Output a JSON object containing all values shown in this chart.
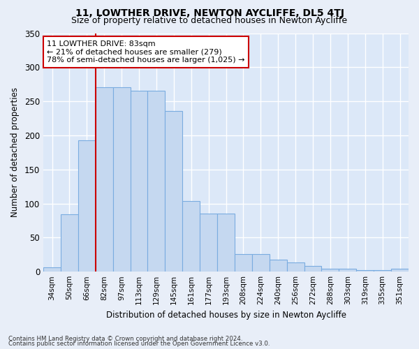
{
  "title": "11, LOWTHER DRIVE, NEWTON AYCLIFFE, DL5 4TJ",
  "subtitle": "Size of property relative to detached houses in Newton Aycliffe",
  "xlabel": "Distribution of detached houses by size in Newton Aycliffe",
  "ylabel": "Number of detached properties",
  "footnote1": "Contains HM Land Registry data © Crown copyright and database right 2024.",
  "footnote2": "Contains public sector information licensed under the Open Government Licence v3.0.",
  "categories": [
    "34sqm",
    "50sqm",
    "66sqm",
    "82sqm",
    "97sqm",
    "113sqm",
    "129sqm",
    "145sqm",
    "161sqm",
    "177sqm",
    "193sqm",
    "208sqm",
    "224sqm",
    "240sqm",
    "256sqm",
    "272sqm",
    "288sqm",
    "303sqm",
    "319sqm",
    "335sqm",
    "351sqm"
  ],
  "bar_values": [
    6,
    84,
    193,
    271,
    271,
    265,
    265,
    236,
    104,
    85,
    85,
    26,
    26,
    18,
    14,
    8,
    4,
    4,
    2,
    2,
    4
  ],
  "bar_color": "#c5d8f0",
  "bar_edge_color": "#7aace0",
  "vline_pos": 2.5,
  "vline_color": "#cc0000",
  "annotation_text": "11 LOWTHER DRIVE: 83sqm\n← 21% of detached houses are smaller (279)\n78% of semi-detached houses are larger (1,025) →",
  "annotation_box_color": "#ffffff",
  "annotation_box_edge": "#cc0000",
  "ylim": [
    0,
    350
  ],
  "yticks": [
    0,
    50,
    100,
    150,
    200,
    250,
    300,
    350
  ],
  "bg_color": "#dce8f8",
  "title_fontsize": 10,
  "subtitle_fontsize": 9
}
